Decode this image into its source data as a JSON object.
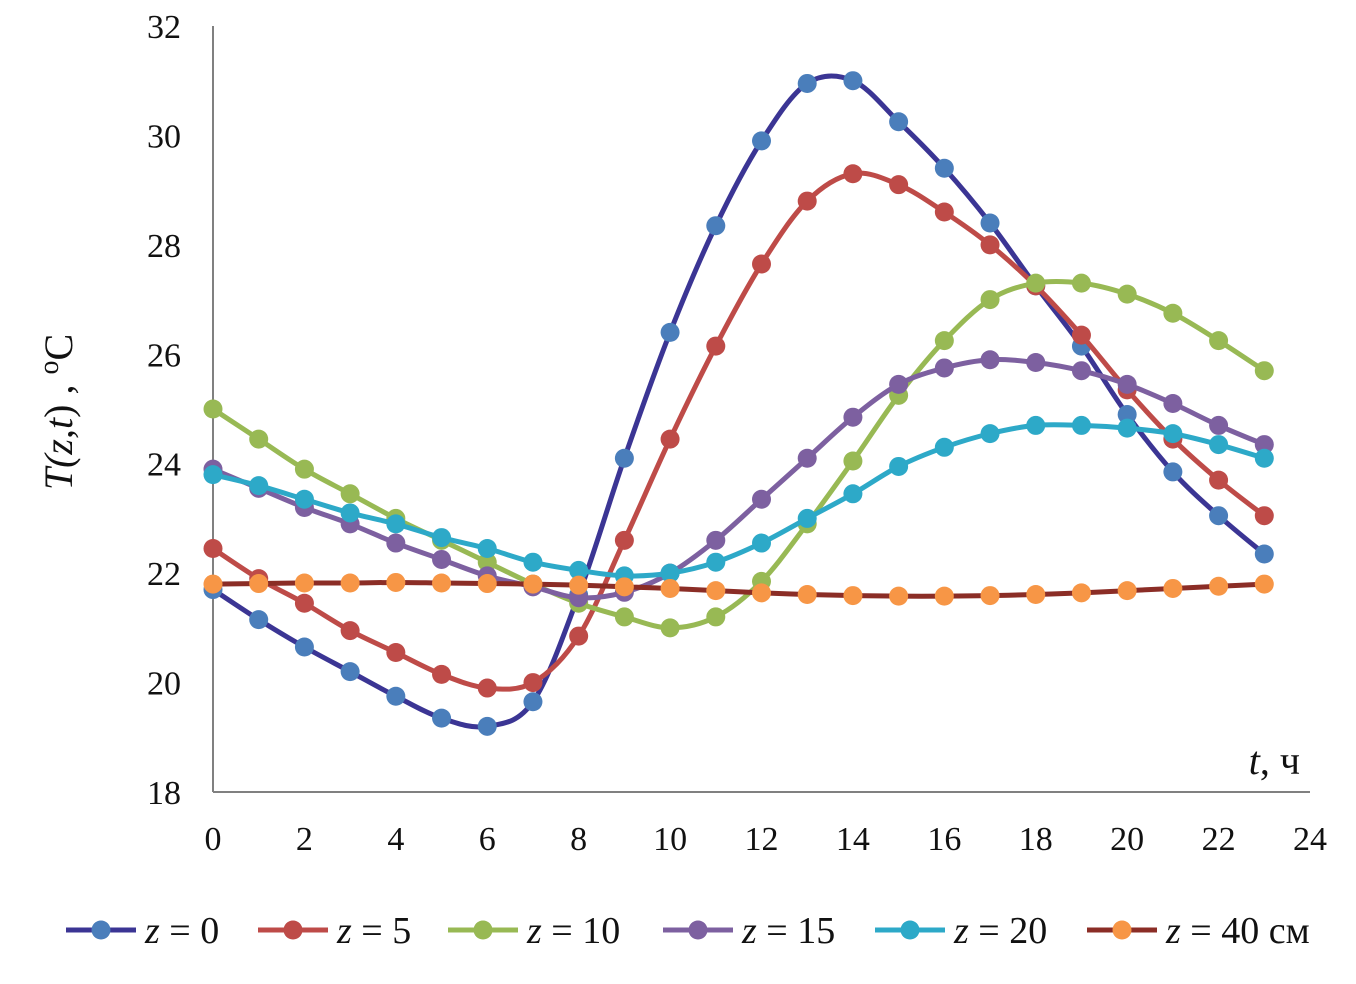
{
  "chart_data": {
    "type": "line",
    "title": "",
    "xlabel": {
      "var": "t",
      "rest": ", ч"
    },
    "ylabel": {
      "parts": [
        "T(",
        "z",
        ",",
        "t",
        ") , ",
        "о",
        "С"
      ]
    },
    "xlim": [
      0,
      24
    ],
    "ylim": [
      18,
      32
    ],
    "xticks": [
      "0",
      "2",
      "4",
      "6",
      "8",
      "10",
      "12",
      "14",
      "16",
      "18",
      "20",
      "22",
      "24"
    ],
    "yticks": [
      "18",
      "20",
      "22",
      "24",
      "26",
      "28",
      "30",
      "32"
    ],
    "grid": false,
    "legend_position": "bottom",
    "x": [
      0,
      1,
      2,
      3,
      4,
      5,
      6,
      7,
      8,
      9,
      10,
      11,
      12,
      13,
      14,
      15,
      16,
      17,
      18,
      19,
      20,
      21,
      22,
      23
    ],
    "series": [
      {
        "var": "z",
        "rest": " = 0",
        "line_color": "#3B3594",
        "marker_color": "#4A7EBB",
        "values": [
          21.7,
          21.15,
          20.65,
          20.2,
          19.75,
          19.35,
          19.2,
          19.65,
          21.6,
          24.1,
          26.4,
          28.35,
          29.9,
          30.95,
          31.0,
          30.25,
          29.4,
          28.4,
          27.25,
          26.15,
          24.9,
          23.85,
          23.05,
          22.35
        ]
      },
      {
        "var": "z",
        "rest": " = 5",
        "line_color": "#BE4B48",
        "marker_color": "#BE4B48",
        "values": [
          22.45,
          21.9,
          21.45,
          20.95,
          20.55,
          20.15,
          19.9,
          20.0,
          20.85,
          22.6,
          24.45,
          26.15,
          27.65,
          28.8,
          29.3,
          29.1,
          28.6,
          28.0,
          27.25,
          26.35,
          25.35,
          24.45,
          23.7,
          23.05
        ]
      },
      {
        "var": "z",
        "rest": " = 10",
        "line_color": "#98B954",
        "marker_color": "#98B954",
        "values": [
          25.0,
          24.45,
          23.9,
          23.45,
          23.0,
          22.6,
          22.2,
          21.8,
          21.45,
          21.2,
          21.0,
          21.2,
          21.85,
          22.9,
          24.05,
          25.25,
          26.25,
          27.0,
          27.3,
          27.3,
          27.1,
          26.75,
          26.25,
          25.7
        ]
      },
      {
        "var": "z",
        "rest": " = 15",
        "line_color": "#7D60A0",
        "marker_color": "#7D60A0",
        "values": [
          23.9,
          23.55,
          23.2,
          22.9,
          22.55,
          22.25,
          21.95,
          21.75,
          21.55,
          21.65,
          22.0,
          22.6,
          23.35,
          24.1,
          24.85,
          25.45,
          25.75,
          25.9,
          25.85,
          25.7,
          25.45,
          25.1,
          24.7,
          24.35
        ]
      },
      {
        "var": "z",
        "rest": " = 20",
        "line_color": "#2DA9C8",
        "marker_color": "#2DA9C8",
        "values": [
          23.8,
          23.6,
          23.35,
          23.1,
          22.9,
          22.65,
          22.45,
          22.2,
          22.05,
          21.95,
          22.0,
          22.2,
          22.55,
          23.0,
          23.45,
          23.95,
          24.3,
          24.55,
          24.7,
          24.7,
          24.65,
          24.55,
          24.35,
          24.1
        ]
      },
      {
        "var": "z",
        "rest": " = 40 см",
        "line_color": "#8B2D26",
        "marker_color": "#F79646",
        "values": [
          21.8,
          21.81,
          21.82,
          21.82,
          21.83,
          21.82,
          21.81,
          21.8,
          21.78,
          21.75,
          21.72,
          21.68,
          21.64,
          21.61,
          21.59,
          21.58,
          21.58,
          21.59,
          21.61,
          21.64,
          21.68,
          21.72,
          21.76,
          21.8
        ]
      }
    ]
  }
}
